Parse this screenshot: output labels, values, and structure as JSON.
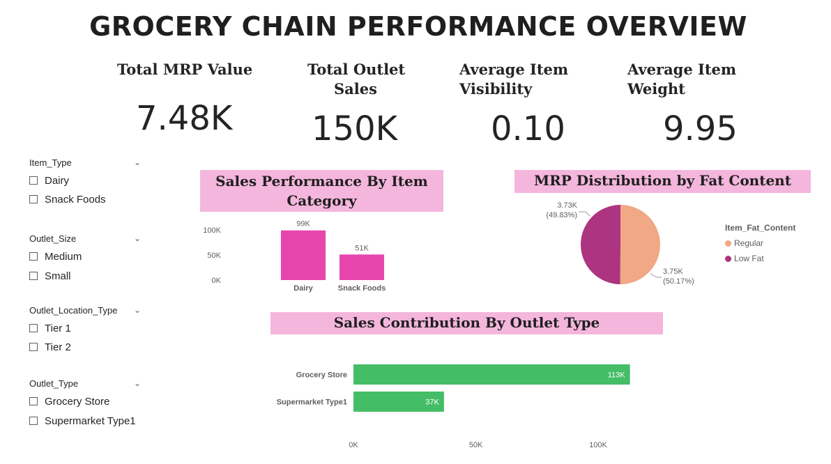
{
  "title": "GROCERY CHAIN PERFORMANCE OVERVIEW",
  "kpis": [
    {
      "label_lines": [
        "Total MRP Value"
      ],
      "value": "7.48K"
    },
    {
      "label_lines": [
        "Total Outlet",
        "Sales"
      ],
      "value": "150K"
    },
    {
      "label_lines": [
        "Average Item",
        "Visibility"
      ],
      "value": "0.10"
    },
    {
      "label_lines": [
        "Average Item",
        "Weight"
      ],
      "value": "9.95"
    }
  ],
  "slicers": [
    {
      "label": "Item_Type",
      "options": [
        "Dairy",
        "Snack Foods"
      ]
    },
    {
      "label": "Outlet_Size",
      "options": [
        "Medium",
        "Small"
      ]
    },
    {
      "label": "Outlet_Location_Type",
      "options": [
        "Tier 1",
        "Tier 2"
      ]
    },
    {
      "label": "Outlet_Type",
      "options": [
        "Grocery Store",
        "Supermarket Type1"
      ]
    }
  ],
  "chart_data": [
    {
      "type": "bar",
      "title": "Sales Performance By Item Category",
      "title_lines": [
        "Sales Performance By Item",
        "Category"
      ],
      "categories": [
        "Dairy",
        "Snack Foods"
      ],
      "values": [
        99000,
        51000
      ],
      "data_labels": [
        "99K",
        "51K"
      ],
      "yticks": [
        "0K",
        "50K",
        "100K"
      ],
      "ylim": [
        0,
        100000
      ],
      "color": "#e645ac"
    },
    {
      "type": "pie",
      "title": "MRP Distribution by Fat Content",
      "legend_title": "Item_Fat_Content",
      "legend_position": "right",
      "slices": [
        {
          "name": "Regular",
          "value": 3750,
          "label": "3.75K",
          "percent": "(50.17%)",
          "color": "#f0a885"
        },
        {
          "name": "Low Fat",
          "value": 3730,
          "label": "3.73K",
          "percent": "(49.83%)",
          "color": "#ad3480"
        }
      ]
    },
    {
      "type": "bar",
      "orientation": "horizontal",
      "title": "Sales Contribution By Outlet Type",
      "categories": [
        "Grocery Store",
        "Supermarket Type1"
      ],
      "values": [
        113000,
        37000
      ],
      "data_labels": [
        "113K",
        "37K"
      ],
      "xticks": [
        "0K",
        "50K",
        "100K"
      ],
      "xlim": [
        0,
        100000
      ],
      "color": "#45bd66"
    }
  ]
}
